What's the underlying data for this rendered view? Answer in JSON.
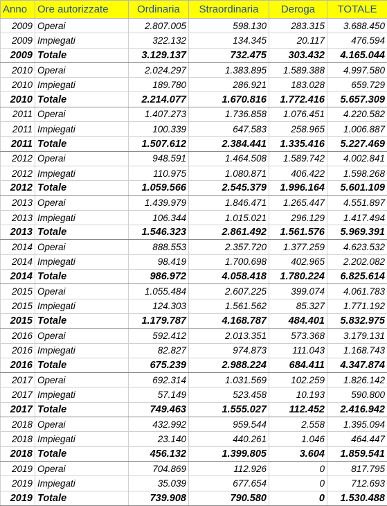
{
  "table": {
    "header": [
      "Anno",
      "Ore autorizzate",
      "Ordinaria",
      "Straordinaria",
      "Deroga",
      "TOTALE"
    ],
    "rows": [
      [
        "2009",
        "Operai",
        "2.807.005",
        "598.130",
        "283.315",
        "3.688.450"
      ],
      [
        "2009",
        "Impiegati",
        "322.132",
        "134.345",
        "20.117",
        "476.594"
      ],
      [
        "2009",
        "Totale",
        "3.129.137",
        "732.475",
        "303.432",
        "4.165.044"
      ],
      [
        "2010",
        "Operai",
        "2.024.297",
        "1.383.895",
        "1.589.388",
        "4.997.580"
      ],
      [
        "2010",
        "Impiegati",
        "189.780",
        "286.921",
        "183.028",
        "659.729"
      ],
      [
        "2010",
        "Totale",
        "2.214.077",
        "1.670.816",
        "1.772.416",
        "5.657.309"
      ],
      [
        "2011",
        "Operai",
        "1.407.273",
        "1.736.858",
        "1.076.451",
        "4.220.582"
      ],
      [
        "2011",
        "Impiegati",
        "100.339",
        "647.583",
        "258.965",
        "1.006.887"
      ],
      [
        "2011",
        "Totale",
        "1.507.612",
        "2.384.441",
        "1.335.416",
        "5.227.469"
      ],
      [
        "2012",
        "Operai",
        "948.591",
        "1.464.508",
        "1.589.742",
        "4.002.841"
      ],
      [
        "2012",
        "Impiegati",
        "110.975",
        "1.080.871",
        "406.422",
        "1.598.268"
      ],
      [
        "2012",
        "Totale",
        "1.059.566",
        "2.545.379",
        "1.996.164",
        "5.601.109"
      ],
      [
        "2013",
        "Operai",
        "1.439.979",
        "1.846.471",
        "1.265.447",
        "4.551.897"
      ],
      [
        "2013",
        "Impiegati",
        "106.344",
        "1.015.021",
        "296.129",
        "1.417.494"
      ],
      [
        "2013",
        "Totale",
        "1.546.323",
        "2.861.492",
        "1.561.576",
        "5.969.391"
      ],
      [
        "2014",
        "Operai",
        "888.553",
        "2.357.720",
        "1.377.259",
        "4.623.532"
      ],
      [
        "2014",
        "Impiegati",
        "98.419",
        "1.700.698",
        "402.965",
        "2.202.082"
      ],
      [
        "2014",
        "Totale",
        "986.972",
        "4.058.418",
        "1.780.224",
        "6.825.614"
      ],
      [
        "2015",
        "Operai",
        "1.055.484",
        "2.607.225",
        "399.074",
        "4.061.783"
      ],
      [
        "2015",
        "Impiegati",
        "124.303",
        "1.561.562",
        "85.327",
        "1.771.192"
      ],
      [
        "2015",
        "Totale",
        "1.179.787",
        "4.168.787",
        "484.401",
        "5.832.975"
      ],
      [
        "2016",
        "Operai",
        "592.412",
        "2.013.351",
        "573.368",
        "3.179.131"
      ],
      [
        "2016",
        "Impiegati",
        "82.827",
        "974.873",
        "111.043",
        "1.168.743"
      ],
      [
        "2016",
        "Totale",
        "675.239",
        "2.988.224",
        "684.411",
        "4.347.874"
      ],
      [
        "2017",
        "Operai",
        "692.314",
        "1.031.569",
        "102.259",
        "1.826.142"
      ],
      [
        "2017",
        "Impiegati",
        "57.149",
        "523.458",
        "10.193",
        "590.800"
      ],
      [
        "2017",
        "Totale",
        "749.463",
        "1.555.027",
        "112.452",
        "2.416.942"
      ],
      [
        "2018",
        "Operai",
        "432.992",
        "959.544",
        "2.558",
        "1.395.094"
      ],
      [
        "2018",
        "Impiegati",
        "23.140",
        "440.261",
        "1.046",
        "464.447"
      ],
      [
        "2018",
        "Totale",
        "456.132",
        "1.399.805",
        "3.604",
        "1.859.541"
      ],
      [
        "2019",
        "Operai",
        "704.869",
        "112.926",
        "0",
        "817.795"
      ],
      [
        "2019",
        "Impiegati",
        "35.039",
        "677.654",
        "0",
        "712.693"
      ],
      [
        "2019",
        "Totale",
        "739.908",
        "790.580",
        "0",
        "1.530.488"
      ]
    ]
  }
}
